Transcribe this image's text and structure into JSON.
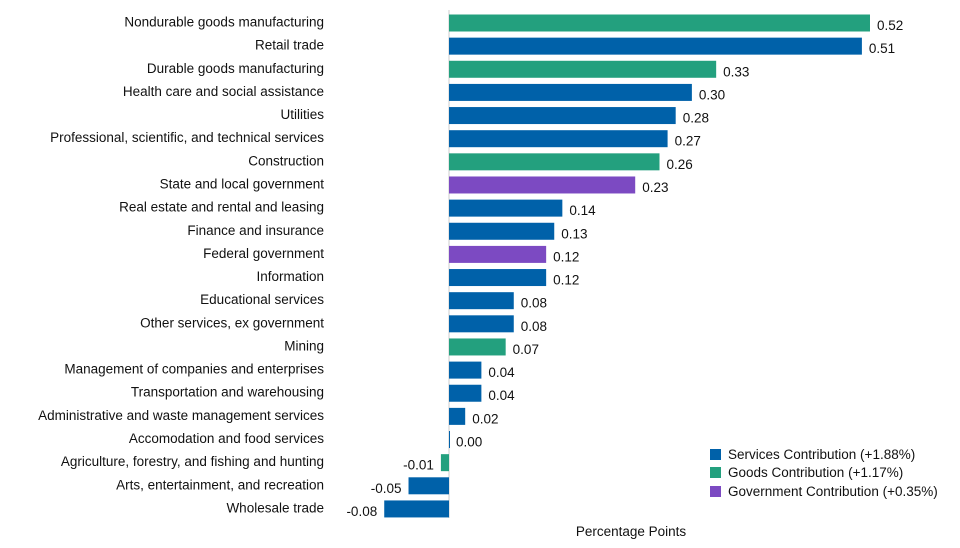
{
  "chart_data": {
    "type": "bar",
    "orientation": "horizontal",
    "xlabel": "Percentage Points",
    "xlim": [
      -0.08,
      0.52
    ],
    "grid": false,
    "legend_placement": "bottom-right",
    "colors": {
      "Services": "#0061A9",
      "Goods": "#23A07E",
      "Government": "#7C4AC2"
    },
    "legend": [
      {
        "group": "Services",
        "label": "Services Contribution (+1.88%)"
      },
      {
        "group": "Goods",
        "label": "Goods Contribution (+1.17%)"
      },
      {
        "group": "Government",
        "label": "Government Contribution (+0.35%)"
      }
    ],
    "categories": [
      "Nondurable goods manufacturing",
      "Retail trade",
      "Durable goods manufacturing",
      "Health care and social assistance",
      "Utilities",
      "Professional, scientific, and technical services",
      "Construction",
      "State and local government",
      "Real estate and rental and leasing",
      "Finance and insurance",
      "Federal government",
      "Information",
      "Educational services",
      "Other services, ex government",
      "Mining",
      "Management of companies and enterprises",
      "Transportation and warehousing",
      "Administrative and waste management services",
      "Accomodation and food services",
      "Agriculture, forestry, and fishing and hunting",
      "Arts, entertainment, and recreation",
      "Wholesale trade"
    ],
    "values": [
      0.52,
      0.51,
      0.33,
      0.3,
      0.28,
      0.27,
      0.26,
      0.23,
      0.14,
      0.13,
      0.12,
      0.12,
      0.08,
      0.08,
      0.07,
      0.04,
      0.04,
      0.02,
      0.0,
      -0.01,
      -0.05,
      -0.08
    ],
    "labels": [
      "0.52",
      "0.51",
      "0.33",
      "0.30",
      "0.28",
      "0.27",
      "0.26",
      "0.23",
      "0.14",
      "0.13",
      "0.12",
      "0.12",
      "0.08",
      "0.08",
      "0.07",
      "0.04",
      "0.04",
      "0.02",
      "0.00",
      "-0.01",
      "-0.05",
      "-0.08"
    ],
    "groups": [
      "Goods",
      "Services",
      "Goods",
      "Services",
      "Services",
      "Services",
      "Goods",
      "Government",
      "Services",
      "Services",
      "Government",
      "Services",
      "Services",
      "Services",
      "Goods",
      "Services",
      "Services",
      "Services",
      "Services",
      "Goods",
      "Services",
      "Services"
    ]
  }
}
